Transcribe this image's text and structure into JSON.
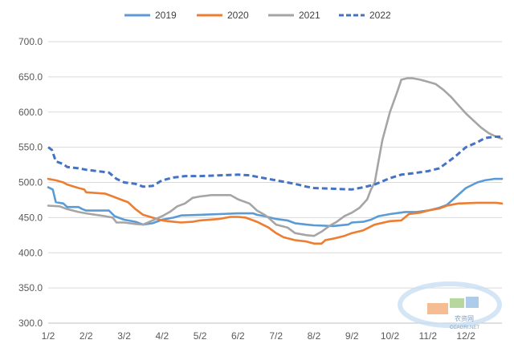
{
  "chart_data": {
    "type": "line",
    "title": "",
    "xlabel": "",
    "ylabel": "",
    "ylim": [
      300,
      700
    ],
    "yticks": [
      300,
      350,
      400,
      450,
      500,
      550,
      600,
      650,
      700
    ],
    "ytick_labels": [
      "300.0",
      "350.0",
      "400.0",
      "450.0",
      "500.0",
      "550.0",
      "600.0",
      "650.0",
      "700.0"
    ],
    "xlim": [
      1,
      12.95
    ],
    "xticks": [
      1,
      2,
      3,
      4,
      5,
      6,
      7,
      8,
      9,
      10,
      11,
      12
    ],
    "xtick_labels": [
      "1/2",
      "2/2",
      "3/2",
      "4/2",
      "5/2",
      "6/2",
      "7/2",
      "8/2",
      "9/2",
      "10/2",
      "11/2",
      "12/2"
    ],
    "grid": true,
    "legend_position": "top",
    "series": [
      {
        "name": "2019",
        "color": "#5b9bd5",
        "dash": "solid",
        "points": [
          [
            1.0,
            493
          ],
          [
            1.12,
            490
          ],
          [
            1.2,
            472
          ],
          [
            1.4,
            470
          ],
          [
            1.5,
            465
          ],
          [
            1.8,
            465
          ],
          [
            1.9,
            462
          ],
          [
            2.0,
            460
          ],
          [
            2.6,
            460
          ],
          [
            2.75,
            452
          ],
          [
            3.0,
            447
          ],
          [
            3.3,
            444
          ],
          [
            3.5,
            440
          ],
          [
            3.75,
            442
          ],
          [
            4.0,
            447
          ],
          [
            4.3,
            450
          ],
          [
            4.5,
            453
          ],
          [
            5.0,
            454
          ],
          [
            5.5,
            455
          ],
          [
            6.0,
            456
          ],
          [
            6.4,
            456
          ],
          [
            6.5,
            454
          ],
          [
            6.7,
            452
          ],
          [
            7.0,
            448
          ],
          [
            7.3,
            446
          ],
          [
            7.5,
            442
          ],
          [
            7.8,
            440
          ],
          [
            8.0,
            439
          ],
          [
            8.5,
            438
          ],
          [
            8.9,
            440
          ],
          [
            9.0,
            443
          ],
          [
            9.3,
            444
          ],
          [
            9.5,
            447
          ],
          [
            9.7,
            452
          ],
          [
            10.0,
            455
          ],
          [
            10.4,
            458
          ],
          [
            10.7,
            458
          ],
          [
            11.0,
            460
          ],
          [
            11.3,
            464
          ],
          [
            11.5,
            468
          ],
          [
            11.75,
            480
          ],
          [
            12.0,
            492
          ],
          [
            12.3,
            500
          ],
          [
            12.5,
            503
          ],
          [
            12.75,
            505
          ],
          [
            12.95,
            505
          ]
        ]
      },
      {
        "name": "2020",
        "color": "#ed7d31",
        "dash": "solid",
        "points": [
          [
            1.0,
            505
          ],
          [
            1.2,
            503
          ],
          [
            1.4,
            500
          ],
          [
            1.5,
            497
          ],
          [
            1.8,
            492
          ],
          [
            1.95,
            490
          ],
          [
            2.0,
            486
          ],
          [
            2.5,
            484
          ],
          [
            2.7,
            480
          ],
          [
            2.9,
            476
          ],
          [
            3.1,
            472
          ],
          [
            3.3,
            462
          ],
          [
            3.5,
            454
          ],
          [
            3.75,
            450
          ],
          [
            4.0,
            446
          ],
          [
            4.3,
            444
          ],
          [
            4.5,
            443
          ],
          [
            4.8,
            444
          ],
          [
            5.0,
            446
          ],
          [
            5.5,
            448
          ],
          [
            5.8,
            451
          ],
          [
            6.0,
            451
          ],
          [
            6.2,
            450
          ],
          [
            6.5,
            444
          ],
          [
            6.8,
            436
          ],
          [
            7.0,
            428
          ],
          [
            7.2,
            422
          ],
          [
            7.5,
            418
          ],
          [
            7.8,
            416
          ],
          [
            8.0,
            413
          ],
          [
            8.2,
            413
          ],
          [
            8.3,
            418
          ],
          [
            8.5,
            420
          ],
          [
            8.8,
            424
          ],
          [
            9.0,
            428
          ],
          [
            9.3,
            432
          ],
          [
            9.6,
            440
          ],
          [
            10.0,
            445
          ],
          [
            10.3,
            446
          ],
          [
            10.5,
            455
          ],
          [
            10.8,
            457
          ],
          [
            11.0,
            460
          ],
          [
            11.3,
            463
          ],
          [
            11.5,
            467
          ],
          [
            11.8,
            470
          ],
          [
            12.3,
            471
          ],
          [
            12.8,
            471
          ],
          [
            12.95,
            470
          ]
        ]
      },
      {
        "name": "2021",
        "color": "#a5a5a5",
        "dash": "solid",
        "points": [
          [
            1.0,
            467
          ],
          [
            1.3,
            466
          ],
          [
            1.5,
            462
          ],
          [
            1.8,
            458
          ],
          [
            2.0,
            456
          ],
          [
            2.5,
            452
          ],
          [
            2.7,
            450
          ],
          [
            2.8,
            443
          ],
          [
            3.0,
            443
          ],
          [
            3.3,
            441
          ],
          [
            3.5,
            440
          ],
          [
            3.75,
            446
          ],
          [
            4.0,
            452
          ],
          [
            4.2,
            458
          ],
          [
            4.4,
            466
          ],
          [
            4.6,
            470
          ],
          [
            4.8,
            478
          ],
          [
            5.0,
            480
          ],
          [
            5.3,
            482
          ],
          [
            5.6,
            482
          ],
          [
            5.8,
            482
          ],
          [
            6.0,
            476
          ],
          [
            6.3,
            470
          ],
          [
            6.5,
            460
          ],
          [
            6.7,
            454
          ],
          [
            6.8,
            450
          ],
          [
            7.0,
            440
          ],
          [
            7.3,
            436
          ],
          [
            7.5,
            428
          ],
          [
            7.8,
            425
          ],
          [
            8.0,
            424
          ],
          [
            8.2,
            430
          ],
          [
            8.4,
            438
          ],
          [
            8.6,
            444
          ],
          [
            8.8,
            452
          ],
          [
            9.0,
            457
          ],
          [
            9.2,
            464
          ],
          [
            9.4,
            476
          ],
          [
            9.5,
            490
          ],
          [
            9.6,
            500
          ],
          [
            9.7,
            530
          ],
          [
            9.8,
            560
          ],
          [
            9.9,
            580
          ],
          [
            10.0,
            600
          ],
          [
            10.1,
            615
          ],
          [
            10.2,
            630
          ],
          [
            10.3,
            646
          ],
          [
            10.45,
            648
          ],
          [
            10.6,
            648
          ],
          [
            10.8,
            646
          ],
          [
            11.0,
            643
          ],
          [
            11.2,
            640
          ],
          [
            11.4,
            632
          ],
          [
            11.6,
            622
          ],
          [
            11.8,
            610
          ],
          [
            12.0,
            598
          ],
          [
            12.2,
            588
          ],
          [
            12.4,
            578
          ],
          [
            12.6,
            570
          ],
          [
            12.8,
            565
          ],
          [
            12.95,
            562
          ]
        ]
      },
      {
        "name": "2022",
        "color": "#4472c4",
        "dash": "dashed",
        "points": [
          [
            1.0,
            550
          ],
          [
            1.1,
            546
          ],
          [
            1.2,
            530
          ],
          [
            1.4,
            526
          ],
          [
            1.5,
            522
          ],
          [
            1.8,
            520
          ],
          [
            2.0,
            518
          ],
          [
            2.3,
            516
          ],
          [
            2.6,
            514
          ],
          [
            2.8,
            505
          ],
          [
            3.0,
            500
          ],
          [
            3.3,
            498
          ],
          [
            3.5,
            494
          ],
          [
            3.75,
            495
          ],
          [
            4.0,
            503
          ],
          [
            4.3,
            507
          ],
          [
            4.6,
            509
          ],
          [
            5.0,
            509
          ],
          [
            5.5,
            510
          ],
          [
            6.0,
            511
          ],
          [
            6.3,
            510
          ],
          [
            6.6,
            507
          ],
          [
            7.0,
            503
          ],
          [
            7.5,
            498
          ],
          [
            7.8,
            494
          ],
          [
            8.0,
            492
          ],
          [
            8.5,
            491
          ],
          [
            9.0,
            490
          ],
          [
            9.3,
            493
          ],
          [
            9.6,
            497
          ],
          [
            10.0,
            506
          ],
          [
            10.3,
            511
          ],
          [
            10.6,
            513
          ],
          [
            11.0,
            516
          ],
          [
            11.3,
            520
          ],
          [
            11.5,
            528
          ],
          [
            11.7,
            536
          ],
          [
            12.0,
            550
          ],
          [
            12.3,
            557
          ],
          [
            12.5,
            563
          ],
          [
            12.75,
            565
          ],
          [
            12.95,
            565
          ]
        ]
      }
    ]
  },
  "watermark": {
    "line1": "农资网",
    "line2": "CCAGRI.NET"
  }
}
